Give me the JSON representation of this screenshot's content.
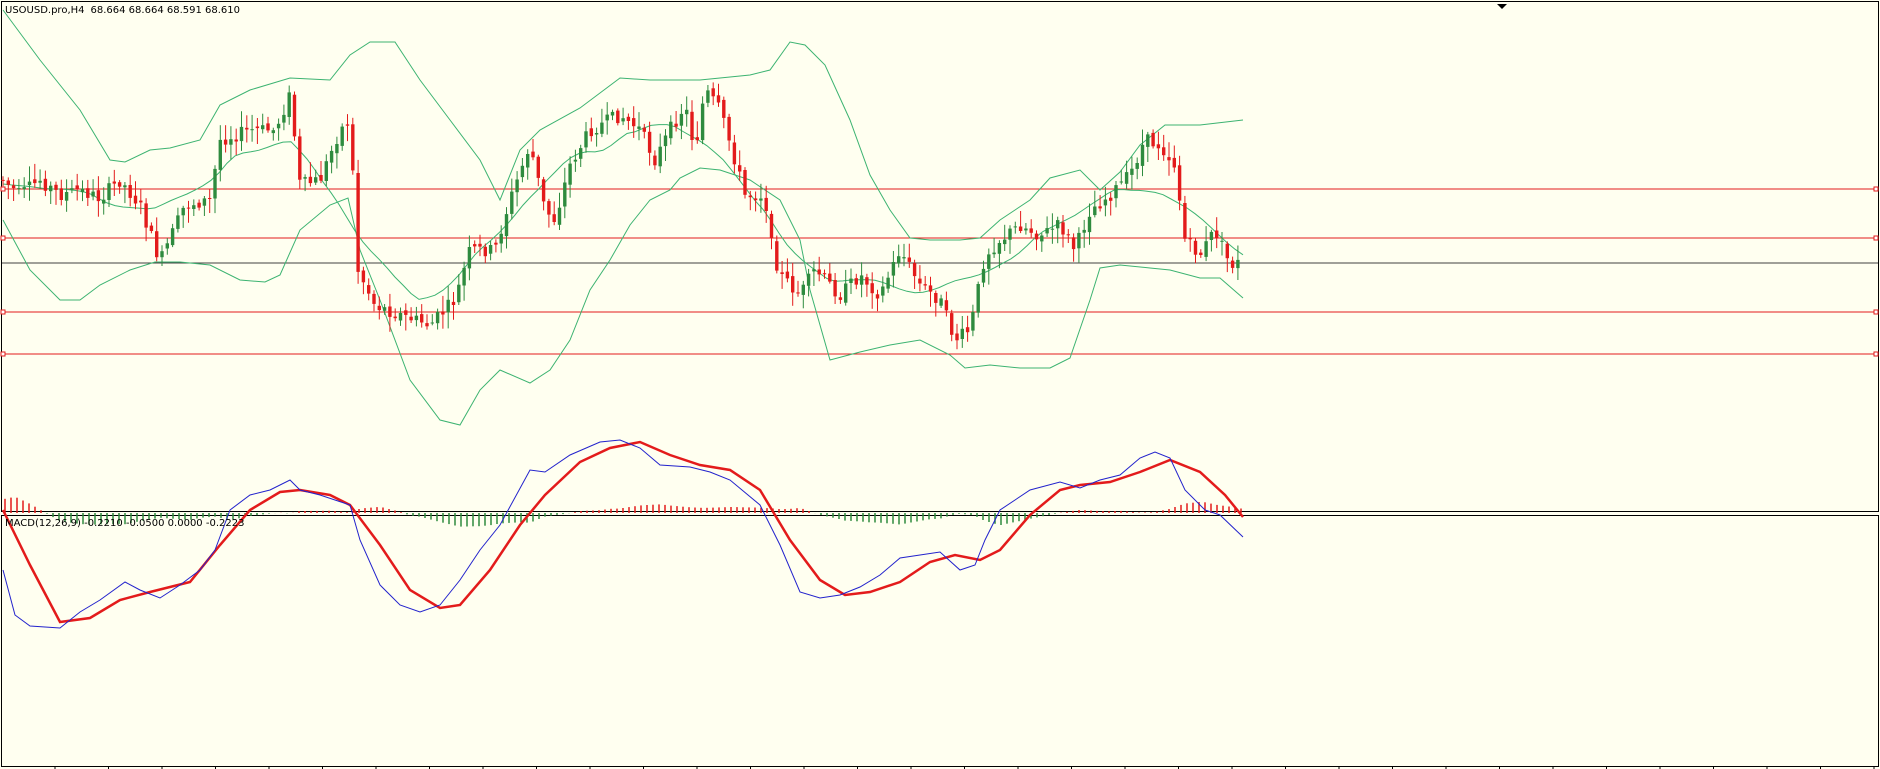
{
  "main_panel": {
    "symbol": "USOUSD.pro,H4",
    "ohlc_text": "68.664 68.664 68.591 68.610"
  },
  "macd_panel": {
    "label": "MACD(12,26,9) -0.2210 -0.0500 0.0000 -0.2223"
  },
  "colors": {
    "background": "#fffff0",
    "bull": "#2e8b3e",
    "bear": "#e31b1b",
    "band": "#3cb371",
    "hline": "#e31b1b",
    "price_line": "#404040",
    "macd_line": "#2222cc",
    "signal_line": "#e31b1b"
  },
  "chart_data": [
    {
      "type": "candlestick",
      "symbol": "USOUSD.pro",
      "timeframe": "H4",
      "last_bar": {
        "open": 68.664,
        "high": 68.664,
        "low": 68.591,
        "close": 68.61
      },
      "candles_count": 236,
      "indicators": [
        "Bollinger Bands"
      ],
      "horizontal_lines": 4,
      "grid": false
    },
    {
      "type": "macd",
      "params": [
        12,
        26,
        9
      ],
      "values": {
        "main": -0.221,
        "signal": -0.05,
        "zero": 0.0,
        "histogram": -0.2223
      },
      "grid": false
    }
  ]
}
